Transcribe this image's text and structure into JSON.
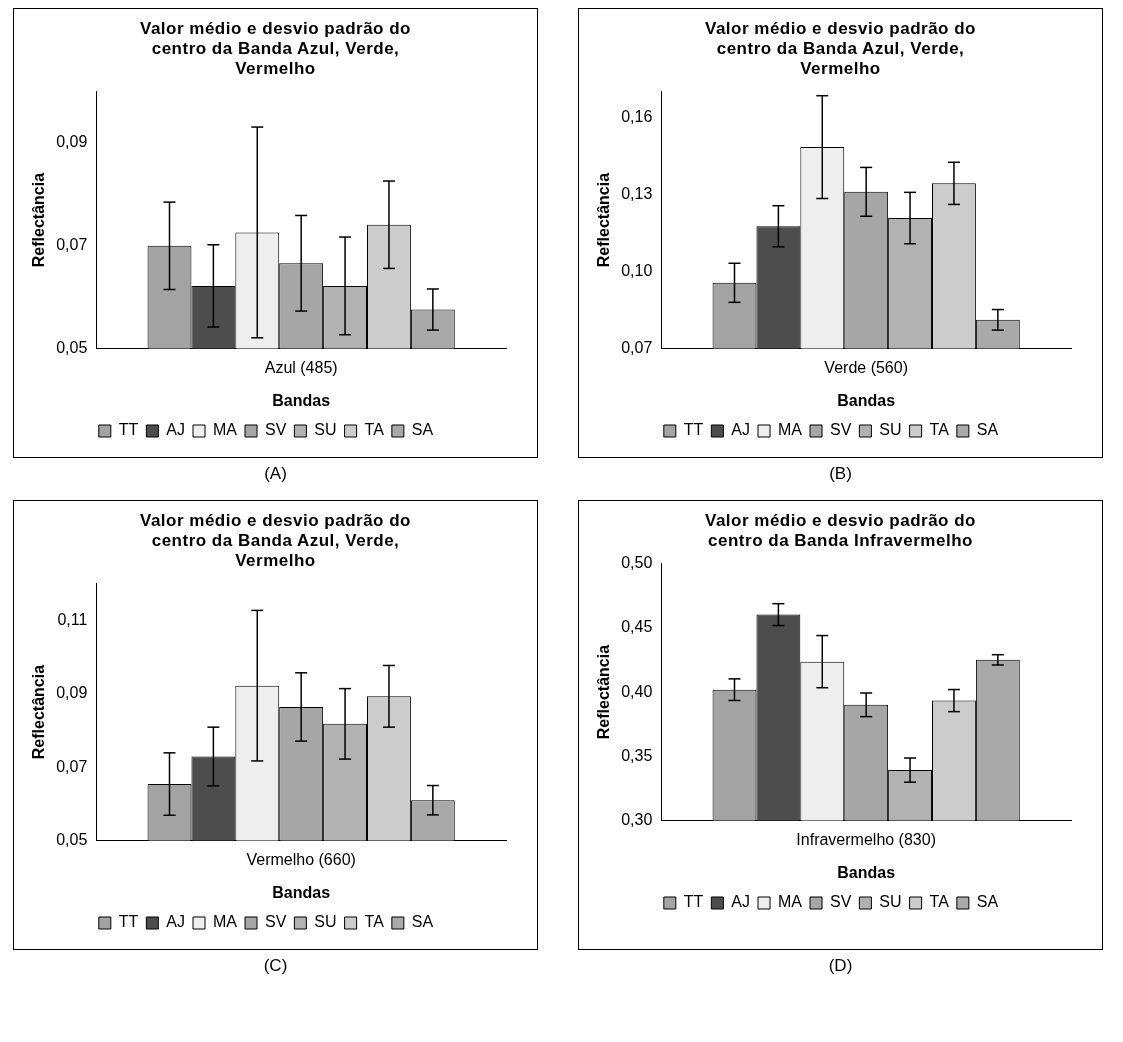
{
  "chart_data": [
    {
      "type": "bar",
      "title": "Valor médio e desvio padrão do centro da Banda Azul, Verde, Vermelho",
      "xlabel": "Bandas",
      "ylabel": "Reflectância",
      "categories": [
        "Azul (485)"
      ],
      "ylim": [
        0.05,
        0.1
      ],
      "yticks": [
        {
          "value": 0.05,
          "label": "0,05"
        },
        {
          "value": 0.07,
          "label": "0,07"
        },
        {
          "value": 0.09,
          "label": "0,09"
        }
      ],
      "grid": false,
      "legend": "bottom",
      "annotations": [
        "(A)"
      ],
      "series": [
        {
          "name": "TT",
          "color": "#a3a3a3",
          "values": [
            0.07
          ],
          "errors": [
            0.0085
          ]
        },
        {
          "name": "AJ",
          "color": "#4d4d4d",
          "values": [
            0.0622
          ],
          "errors": [
            0.008
          ]
        },
        {
          "name": "MA",
          "color": "#eeeeee",
          "values": [
            0.0726
          ],
          "errors": [
            0.0205
          ]
        },
        {
          "name": "SV",
          "color": "#a6a6a6",
          "values": [
            0.0666
          ],
          "errors": [
            0.0093
          ]
        },
        {
          "name": "SU",
          "color": "#b2b2b2",
          "values": [
            0.0622
          ],
          "errors": [
            0.0095
          ]
        },
        {
          "name": "TA",
          "color": "#cccccc",
          "values": [
            0.0741
          ],
          "errors": [
            0.0085
          ]
        },
        {
          "name": "SA",
          "color": "#a9a9a9",
          "values": [
            0.0576
          ],
          "errors": [
            0.004
          ]
        }
      ]
    },
    {
      "type": "bar",
      "title": "Valor médio e desvio padrão do centro da Banda Azul, Verde, Vermelho",
      "xlabel": "Bandas",
      "ylabel": "Reflectância",
      "categories": [
        "Verde (560)"
      ],
      "ylim": [
        0.07,
        0.17
      ],
      "yticks": [
        {
          "value": 0.07,
          "label": "0,07"
        },
        {
          "value": 0.1,
          "label": "0,10"
        },
        {
          "value": 0.13,
          "label": "0,13"
        },
        {
          "value": 0.16,
          "label": "0,16"
        }
      ],
      "grid": false,
      "legend": "bottom",
      "annotations": [
        "(B)"
      ],
      "series": [
        {
          "name": "TT",
          "color": "#a3a3a3",
          "values": [
            0.0956
          ],
          "errors": [
            0.0076
          ]
        },
        {
          "name": "AJ",
          "color": "#4d4d4d",
          "values": [
            0.1176
          ],
          "errors": [
            0.008
          ]
        },
        {
          "name": "MA",
          "color": "#eeeeee",
          "values": [
            0.1484
          ],
          "errors": [
            0.02
          ]
        },
        {
          "name": "SV",
          "color": "#a6a6a6",
          "values": [
            0.131
          ],
          "errors": [
            0.0095
          ]
        },
        {
          "name": "SU",
          "color": "#b2b2b2",
          "values": [
            0.1208
          ],
          "errors": [
            0.01
          ]
        },
        {
          "name": "TA",
          "color": "#cccccc",
          "values": [
            0.1343
          ],
          "errors": [
            0.0082
          ]
        },
        {
          "name": "SA",
          "color": "#a9a9a9",
          "values": [
            0.0812
          ],
          "errors": [
            0.004
          ]
        }
      ]
    },
    {
      "type": "bar",
      "title": "Valor médio e desvio padrão do centro da Banda Azul, Verde, Vermelho",
      "xlabel": "Bandas",
      "ylabel": "Reflectância",
      "categories": [
        "Vermelho (660)"
      ],
      "ylim": [
        0.05,
        0.12
      ],
      "yticks": [
        {
          "value": 0.05,
          "label": "0,05"
        },
        {
          "value": 0.07,
          "label": "0,07"
        },
        {
          "value": 0.09,
          "label": "0,09"
        },
        {
          "value": 0.11,
          "label": "0,11"
        }
      ],
      "grid": false,
      "legend": "bottom",
      "annotations": [
        "(C)"
      ],
      "series": [
        {
          "name": "TT",
          "color": "#a3a3a3",
          "values": [
            0.0654
          ],
          "errors": [
            0.0085
          ]
        },
        {
          "name": "AJ",
          "color": "#4d4d4d",
          "values": [
            0.0729
          ],
          "errors": [
            0.008
          ]
        },
        {
          "name": "MA",
          "color": "#eeeeee",
          "values": [
            0.0922
          ],
          "errors": [
            0.0205
          ]
        },
        {
          "name": "SV",
          "color": "#a6a6a6",
          "values": [
            0.0864
          ],
          "errors": [
            0.0093
          ]
        },
        {
          "name": "SU",
          "color": "#b2b2b2",
          "values": [
            0.0818
          ],
          "errors": [
            0.0096
          ]
        },
        {
          "name": "TA",
          "color": "#cccccc",
          "values": [
            0.0893
          ],
          "errors": [
            0.0084
          ]
        },
        {
          "name": "SA",
          "color": "#a9a9a9",
          "values": [
            0.061
          ],
          "errors": [
            0.004
          ]
        }
      ]
    },
    {
      "type": "bar",
      "title": "Valor médio e desvio padrão do centro da Banda Infravermelho",
      "xlabel": "Bandas",
      "ylabel": "Reflectância",
      "categories": [
        "Infravermelho (830)"
      ],
      "ylim": [
        0.3,
        0.5
      ],
      "yticks": [
        {
          "value": 0.3,
          "label": "0,30"
        },
        {
          "value": 0.35,
          "label": "0,35"
        },
        {
          "value": 0.4,
          "label": "0,40"
        },
        {
          "value": 0.45,
          "label": "0,45"
        },
        {
          "value": 0.5,
          "label": "0,50"
        }
      ],
      "grid": false,
      "legend": "bottom",
      "annotations": [
        "(D)"
      ],
      "series": [
        {
          "name": "TT",
          "color": "#a3a3a3",
          "values": [
            0.4019
          ],
          "errors": [
            0.0084
          ]
        },
        {
          "name": "AJ",
          "color": "#4d4d4d",
          "values": [
            0.4603
          ],
          "errors": [
            0.0085
          ]
        },
        {
          "name": "MA",
          "color": "#eeeeee",
          "values": [
            0.4237
          ],
          "errors": [
            0.0203
          ]
        },
        {
          "name": "SV",
          "color": "#a6a6a6",
          "values": [
            0.3901
          ],
          "errors": [
            0.0092
          ]
        },
        {
          "name": "SU",
          "color": "#b2b2b2",
          "values": [
            0.3393
          ],
          "errors": [
            0.0094
          ]
        },
        {
          "name": "TA",
          "color": "#cccccc",
          "values": [
            0.3934
          ],
          "errors": [
            0.0086
          ]
        },
        {
          "name": "SA",
          "color": "#a9a9a9",
          "values": [
            0.4251
          ],
          "errors": [
            0.004
          ]
        }
      ]
    }
  ]
}
